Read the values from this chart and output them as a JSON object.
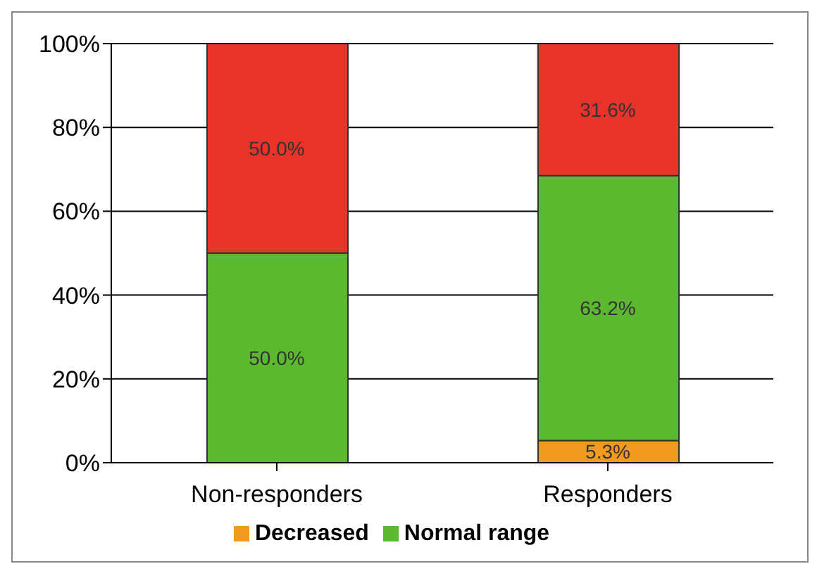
{
  "chart_data": {
    "type": "bar",
    "stacked": true,
    "categories": [
      "Non-responders",
      "Responders"
    ],
    "series": [
      {
        "name": "Decreased",
        "color": "#f39a1e",
        "values": [
          0,
          5.3
        ],
        "value_labels": [
          null,
          "5.3%"
        ]
      },
      {
        "name": "Normal range",
        "color": "#5cb82e",
        "values": [
          50.0,
          63.2
        ],
        "value_labels": [
          "50.0%",
          "63.2%"
        ]
      },
      {
        "color": "#e8332a",
        "values": [
          50.0,
          31.6
        ],
        "value_labels": [
          "50.0%",
          "31.6%"
        ]
      }
    ],
    "ylim": [
      0,
      100
    ],
    "yticks": [
      {
        "value": 0,
        "label": "0%"
      },
      {
        "value": 20,
        "label": "20%"
      },
      {
        "value": 40,
        "label": "40%"
      },
      {
        "value": 60,
        "label": "60%"
      },
      {
        "value": 80,
        "label": "80%"
      },
      {
        "value": 100,
        "label": "100%"
      }
    ],
    "grid": "y",
    "legend": "bottom"
  }
}
